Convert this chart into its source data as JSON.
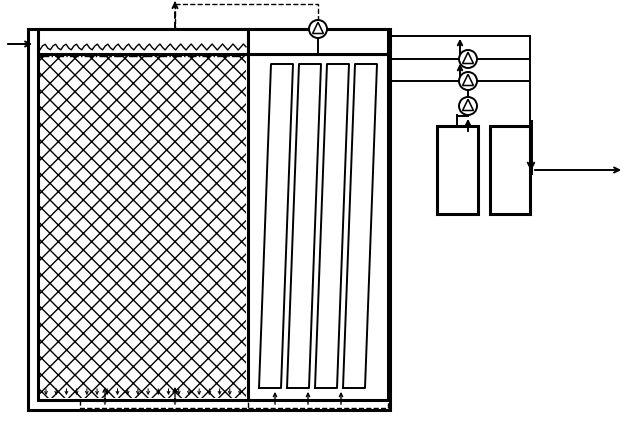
{
  "bg_color": "#ffffff",
  "line_color": "#000000",
  "lw_thick": 2.2,
  "lw_med": 1.4,
  "lw_thin": 1.0,
  "fig_width": 6.24,
  "fig_height": 4.44,
  "dpi": 100
}
